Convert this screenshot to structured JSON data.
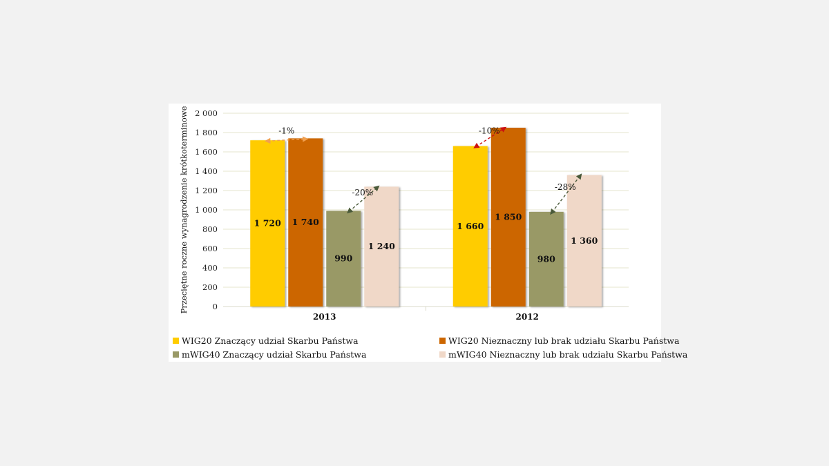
{
  "chart_data": {
    "type": "bar",
    "categories": [
      "2013",
      "2012"
    ],
    "series": [
      {
        "name": "WIG20 Znaczący udział Skarbu Państwa",
        "color": "#ffcc00",
        "values": [
          1720,
          1660
        ],
        "labels": [
          "1 720",
          "1 660"
        ]
      },
      {
        "name": "WIG20 Nieznaczny lub brak udziału Skarbu Państwa",
        "color": "#cc6600",
        "values": [
          1740,
          1850
        ],
        "labels": [
          "1 740",
          "1 850"
        ]
      },
      {
        "name": "mWIG40 Znaczący udział Skarbu Państwa",
        "color": "#999966",
        "values": [
          990,
          980
        ],
        "labels": [
          "990",
          "980"
        ]
      },
      {
        "name": "mWIG40 Nieznaczny lub brak udziału Skarbu Państwa",
        "color": "#f0d8c8",
        "values": [
          1240,
          1360
        ],
        "labels": [
          "1 240",
          "1 360"
        ]
      }
    ],
    "yticks": [
      0,
      200,
      400,
      600,
      800,
      1000,
      1200,
      1400,
      1600,
      1800,
      2000
    ],
    "ytick_labels": [
      "0",
      "200",
      "400",
      "600",
      "800",
      "1 000",
      "1 200",
      "1 400",
      "1 600",
      "1 800",
      "2 000"
    ],
    "ylim": [
      0,
      2000
    ],
    "ylabel": "Przeciętne roczne wynagrodzenie krótkoterminowe",
    "xlabel": "",
    "grid": true,
    "legend_position": "bottom",
    "annotations": [
      {
        "category": 0,
        "from_series": 0,
        "to_series": 1,
        "text": "-1%",
        "color": "#f0a050"
      },
      {
        "category": 0,
        "from_series": 2,
        "to_series": 3,
        "text": "-20%",
        "color": "#4a5a3a"
      },
      {
        "category": 1,
        "from_series": 0,
        "to_series": 1,
        "text": "-10%",
        "color": "#cc1111"
      },
      {
        "category": 1,
        "from_series": 2,
        "to_series": 3,
        "text": "-28%",
        "color": "#4a5a3a"
      }
    ]
  }
}
